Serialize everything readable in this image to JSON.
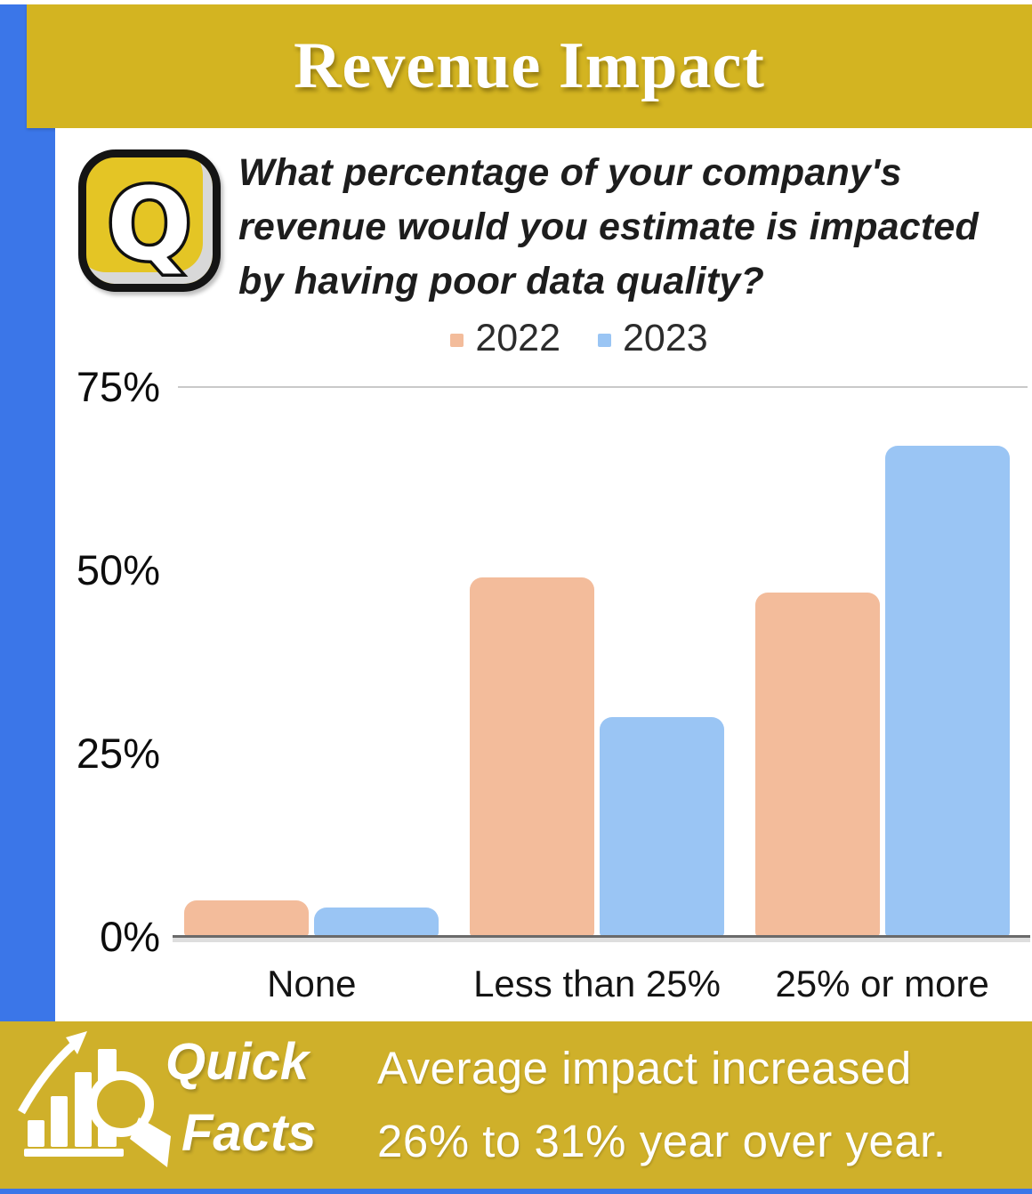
{
  "header": {
    "title": "Revenue Impact"
  },
  "question": {
    "icon_letter": "Q",
    "text": "What percentage of your company's\nrevenue would you estimate is impacted\nby having poor data quality?"
  },
  "chart_data": {
    "type": "bar",
    "title": "",
    "categories": [
      "None",
      "Less than 25%",
      "25% or more"
    ],
    "series": [
      {
        "name": "2022",
        "color": "#f3bc9b",
        "values": [
          5,
          49,
          47
        ]
      },
      {
        "name": "2023",
        "color": "#9ac5f4",
        "values": [
          4,
          30,
          67
        ]
      }
    ],
    "xlabel": "",
    "ylabel": "",
    "y_ticks": [
      "0%",
      "25%",
      "50%",
      "75%"
    ],
    "ylim": [
      0,
      75
    ],
    "grid": "single top gridline at 75%",
    "legend_position": "top-center"
  },
  "footer": {
    "badge": [
      "Quick",
      "Facts"
    ],
    "fact_lines": [
      "Average impact increased",
      "26% to 31% year over year."
    ]
  },
  "colors": {
    "header_yellow": "#d3b421",
    "footer_yellow": "#cfb02a",
    "accent_blue": "#3b76e8",
    "bar_2022": "#f3bc9b",
    "bar_2023": "#9ac5f4",
    "axis_line": "#6a6a6a",
    "gridline": "#c9c9c9",
    "text_dark": "#1d1d1d"
  }
}
